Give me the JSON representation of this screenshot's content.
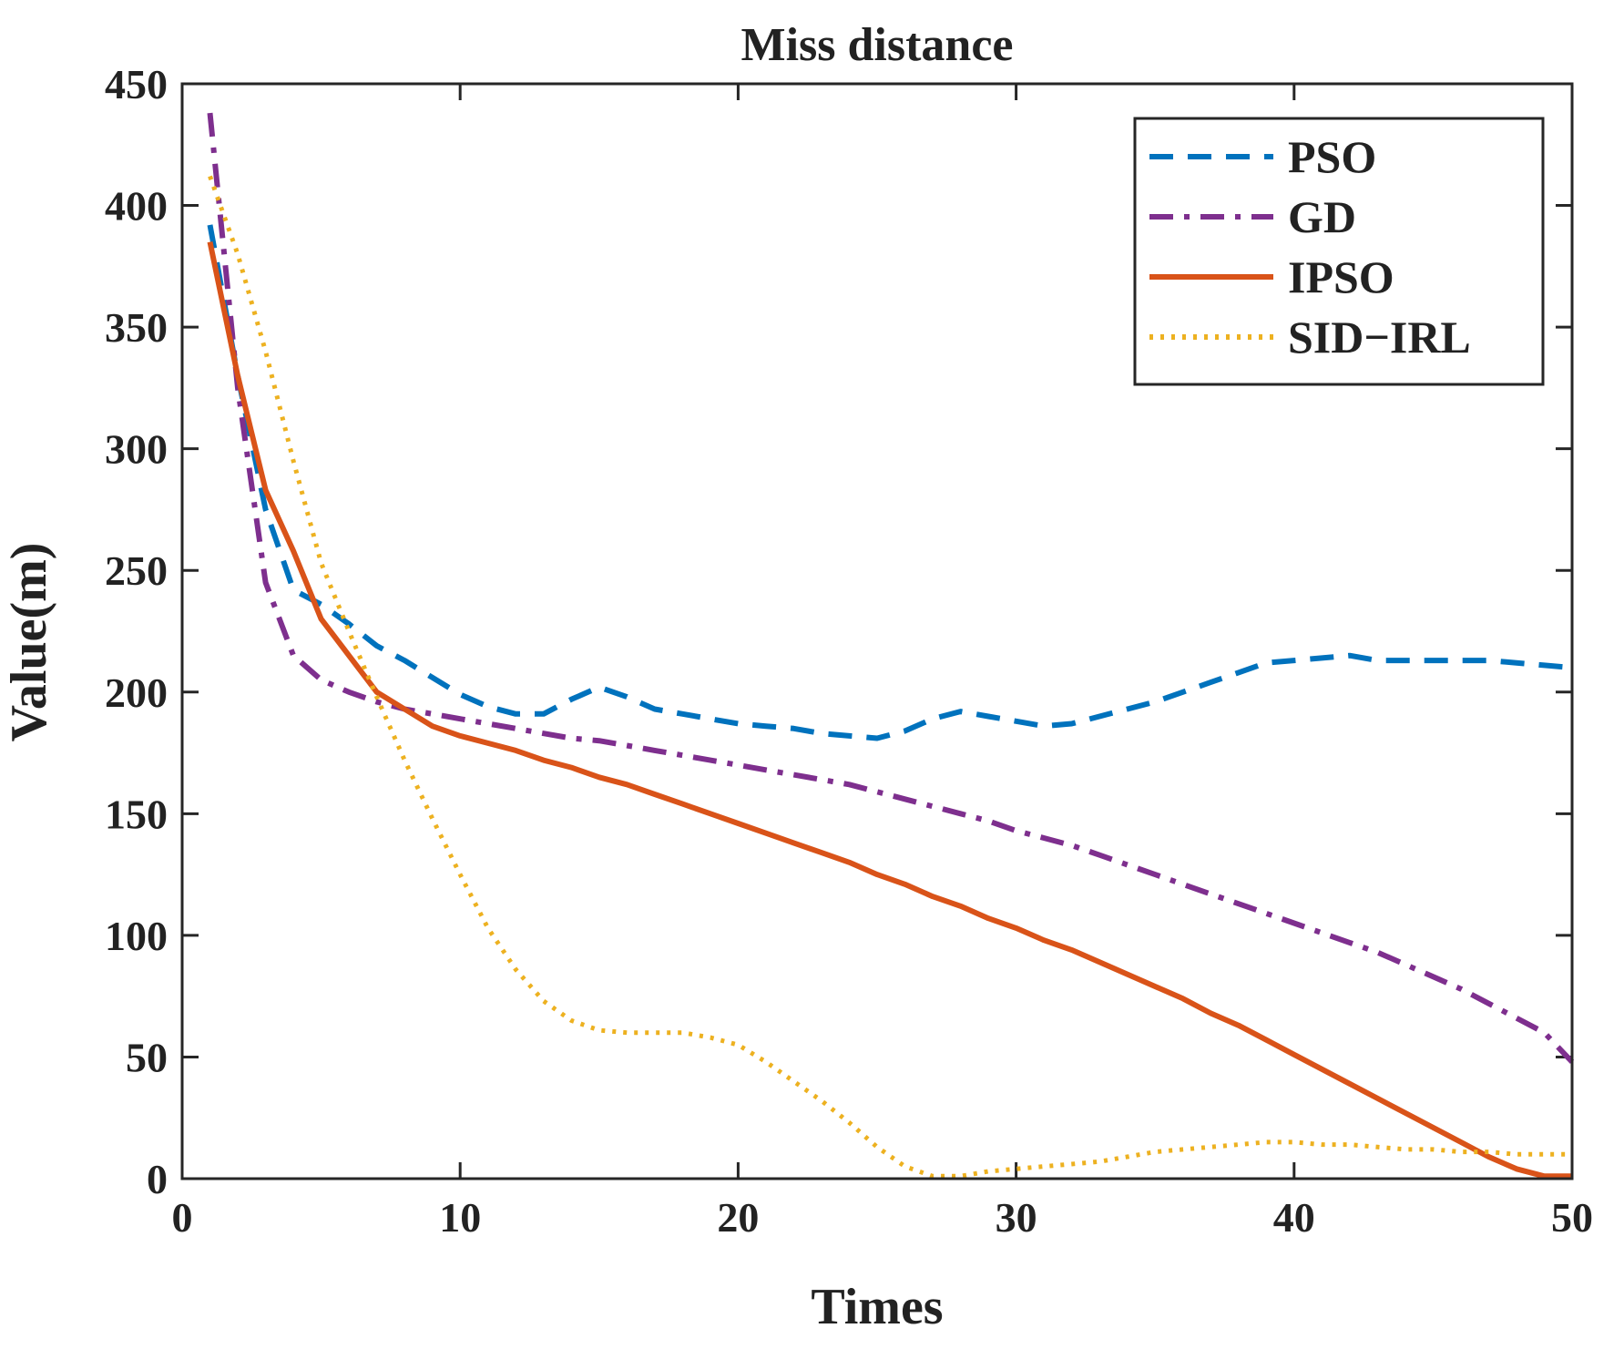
{
  "chart_data": {
    "type": "line",
    "title": "Miss distance",
    "xlabel": "Times",
    "ylabel": "Value(m)",
    "xlim": [
      0,
      50
    ],
    "ylim": [
      0,
      450
    ],
    "xticks": [
      0,
      10,
      20,
      30,
      40,
      50
    ],
    "yticks": [
      0,
      50,
      100,
      150,
      200,
      250,
      300,
      350,
      400,
      450
    ],
    "grid": false,
    "legend_position": "top-right",
    "series": [
      {
        "name": "PSO",
        "color": "#0072BD",
        "style": "dashed",
        "x": [
          1,
          2,
          3,
          4,
          5,
          6,
          7,
          8,
          9,
          10,
          11,
          12,
          13,
          14,
          15,
          16,
          17,
          18,
          19,
          20,
          21,
          22,
          23,
          24,
          25,
          26,
          27,
          28,
          29,
          30,
          31,
          32,
          33,
          34,
          35,
          36,
          37,
          38,
          39,
          40,
          41,
          42,
          43,
          44,
          45,
          46,
          47,
          48,
          49,
          50
        ],
        "values": [
          392,
          330,
          275,
          242,
          236,
          228,
          219,
          213,
          206,
          199,
          194,
          191,
          191,
          197,
          202,
          198,
          193,
          191,
          189,
          187,
          186,
          185,
          183,
          182,
          181,
          184,
          189,
          192,
          190,
          188,
          186,
          187,
          190,
          193,
          196,
          200,
          204,
          208,
          212,
          213,
          214,
          215,
          213,
          213,
          213,
          213,
          213,
          212,
          211,
          210
        ]
      },
      {
        "name": "GD",
        "color": "#7E2F8E",
        "style": "dashdot",
        "x": [
          1,
          2,
          3,
          4,
          5,
          6,
          7,
          8,
          9,
          10,
          11,
          12,
          13,
          14,
          15,
          16,
          17,
          18,
          19,
          20,
          21,
          22,
          23,
          24,
          25,
          26,
          27,
          28,
          29,
          30,
          31,
          32,
          33,
          34,
          35,
          36,
          37,
          38,
          39,
          40,
          41,
          42,
          43,
          44,
          45,
          46,
          47,
          48,
          49,
          50
        ],
        "values": [
          438,
          325,
          245,
          215,
          205,
          200,
          196,
          193,
          191,
          189,
          187,
          185,
          183,
          181,
          180,
          178,
          176,
          174,
          172,
          170,
          168,
          166,
          164,
          162,
          159,
          156,
          153,
          150,
          147,
          143,
          140,
          137,
          133,
          129,
          125,
          121,
          117,
          113,
          109,
          105,
          101,
          97,
          93,
          88,
          83,
          78,
          72,
          66,
          60,
          48
        ]
      },
      {
        "name": "IPSO",
        "color": "#D95319",
        "style": "solid",
        "x": [
          1,
          2,
          3,
          4,
          5,
          6,
          7,
          8,
          9,
          10,
          11,
          12,
          13,
          14,
          15,
          16,
          17,
          18,
          19,
          20,
          21,
          22,
          23,
          24,
          25,
          26,
          27,
          28,
          29,
          30,
          31,
          32,
          33,
          34,
          35,
          36,
          37,
          38,
          39,
          40,
          41,
          42,
          43,
          44,
          45,
          46,
          47,
          48,
          49,
          50
        ],
        "values": [
          385,
          330,
          283,
          258,
          230,
          215,
          200,
          193,
          186,
          182,
          179,
          176,
          172,
          169,
          165,
          162,
          158,
          154,
          150,
          146,
          142,
          138,
          134,
          130,
          125,
          121,
          116,
          112,
          107,
          103,
          98,
          94,
          89,
          84,
          79,
          74,
          68,
          63,
          57,
          51,
          45,
          39,
          33,
          27,
          21,
          15,
          9,
          4,
          1,
          1
        ]
      },
      {
        "name": "SID−IRL",
        "color": "#EDB120",
        "style": "dotted",
        "x": [
          1,
          2,
          3,
          4,
          5,
          6,
          7,
          8,
          9,
          10,
          11,
          12,
          13,
          14,
          15,
          16,
          17,
          18,
          19,
          20,
          21,
          22,
          23,
          24,
          25,
          26,
          27,
          28,
          29,
          30,
          31,
          32,
          33,
          34,
          35,
          36,
          37,
          38,
          39,
          40,
          41,
          42,
          43,
          44,
          45,
          46,
          47,
          48,
          49,
          50
        ],
        "values": [
          412,
          380,
          340,
          295,
          253,
          225,
          198,
          172,
          148,
          125,
          103,
          86,
          73,
          65,
          61,
          60,
          60,
          60,
          58,
          55,
          48,
          40,
          32,
          23,
          13,
          5,
          1,
          1,
          3,
          4,
          5,
          6,
          7,
          9,
          11,
          12,
          13,
          14,
          15,
          15,
          14,
          14,
          13,
          12,
          12,
          11,
          11,
          10,
          10,
          10
        ]
      }
    ]
  }
}
